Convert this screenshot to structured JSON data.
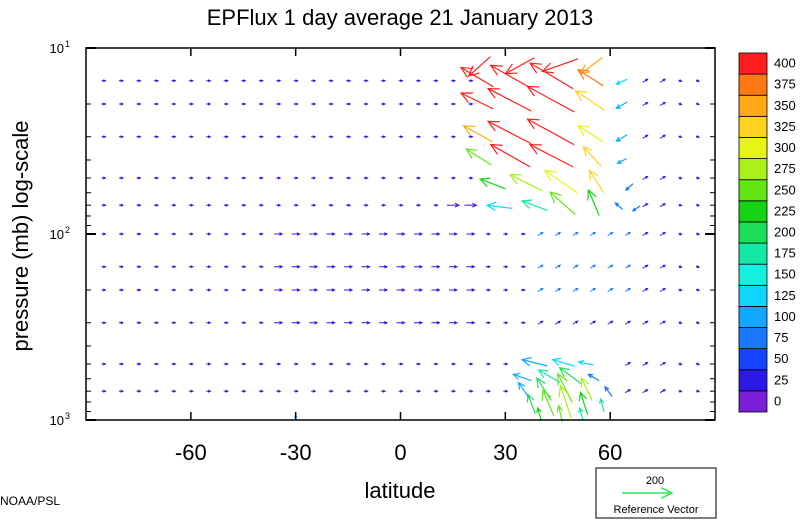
{
  "chart_data": {
    "type": "vector-field",
    "title": "EPFlux  1 day average  21 January   2013",
    "xlabel": "latitude",
    "ylabel": "pressure (mb)  log-scale",
    "xlim": [
      -90,
      90
    ],
    "ylim": [
      1000,
      10
    ],
    "yscale": "log",
    "x_ticks": [
      -60,
      -30,
      0,
      30,
      60
    ],
    "x_tick_labels": [
      "-60",
      "-30",
      "0",
      "30",
      "60"
    ],
    "y_ticks": [
      {
        "value": 10,
        "base": "10",
        "exp": "1"
      },
      {
        "value": 100,
        "base": "10",
        "exp": "2"
      },
      {
        "value": 1000,
        "base": "10",
        "exp": "3"
      }
    ],
    "colorbar": {
      "levels": [
        0,
        25,
        50,
        75,
        100,
        125,
        150,
        175,
        200,
        225,
        250,
        275,
        300,
        325,
        350,
        375,
        400
      ],
      "labels": [
        "0",
        "25",
        "50",
        "75",
        "100",
        "125",
        "150",
        "175",
        "200",
        "225",
        "250",
        "275",
        "300",
        "325",
        "350",
        "375",
        "400"
      ],
      "colors": [
        "#7a1fd6",
        "#2c19e6",
        "#1644ff",
        "#1a78ff",
        "#11a9ff",
        "#0fd6ff",
        "#14f0e0",
        "#14e8a6",
        "#1ce05a",
        "#14d414",
        "#64e614",
        "#aaf014",
        "#e6f514",
        "#ffd21e",
        "#ffaa14",
        "#ff7814",
        "#ff1e1e"
      ]
    },
    "reference_vector": {
      "value": "200",
      "label": "Reference Vector",
      "color": "#2ee65a"
    },
    "field": {
      "lat_columns": [
        -85,
        -80,
        -75,
        -70,
        -65,
        -60,
        -55,
        -50,
        -45,
        -40,
        -35,
        -30,
        -25,
        -20,
        -15,
        -10,
        -5,
        0,
        5,
        10,
        15,
        20,
        25,
        30,
        35,
        40,
        45,
        50,
        55,
        60,
        65,
        70,
        75,
        80,
        85
      ],
      "pressure_levels": [
        700,
        500,
        300,
        200,
        150,
        100,
        70,
        50,
        30,
        20,
        15
      ]
    },
    "vectors": [
      {
        "lat": 24,
        "p": 12,
        "u": 12,
        "v": -12,
        "c": "#ff1e1e"
      },
      {
        "lat": 36,
        "p": 12,
        "u": 16,
        "v": -10,
        "c": "#ff1e1e"
      },
      {
        "lat": 48,
        "p": 12,
        "u": 20,
        "v": -8,
        "c": "#ff1e1e"
      },
      {
        "lat": 56,
        "p": 12,
        "u": 12,
        "v": -10,
        "c": "#ffaa14"
      },
      {
        "lat": 24,
        "p": 15,
        "u": 18,
        "v": 12,
        "c": "#ff1e1e"
      },
      {
        "lat": 34,
        "p": 15,
        "u": 22,
        "v": 14,
        "c": "#ff1e1e"
      },
      {
        "lat": 46,
        "p": 15,
        "u": 24,
        "v": 16,
        "c": "#ff1e1e"
      },
      {
        "lat": 56,
        "p": 15,
        "u": 14,
        "v": 10,
        "c": "#ff7814"
      },
      {
        "lat": 64,
        "p": 15,
        "u": 6,
        "v": -3,
        "c": "#0fd6ff"
      },
      {
        "lat": 24,
        "p": 20,
        "u": 18,
        "v": 10,
        "c": "#ff1e1e"
      },
      {
        "lat": 34,
        "p": 20,
        "u": 24,
        "v": 14,
        "c": "#ff1e1e"
      },
      {
        "lat": 46,
        "p": 20,
        "u": 26,
        "v": 16,
        "c": "#ff1e1e"
      },
      {
        "lat": 56,
        "p": 20,
        "u": 16,
        "v": 12,
        "c": "#ffd21e"
      },
      {
        "lat": 64,
        "p": 20,
        "u": 6,
        "v": -4,
        "c": "#11a9ff"
      },
      {
        "lat": 24,
        "p": 30,
        "u": 16,
        "v": 10,
        "c": "#ffaa14"
      },
      {
        "lat": 34,
        "p": 30,
        "u": 24,
        "v": 14,
        "c": "#ff1e1e"
      },
      {
        "lat": 46,
        "p": 30,
        "u": 26,
        "v": 16,
        "c": "#ff1e1e"
      },
      {
        "lat": 56,
        "p": 30,
        "u": 14,
        "v": 10,
        "c": "#e6f514"
      },
      {
        "lat": 64,
        "p": 30,
        "u": 6,
        "v": -4,
        "c": "#11a9ff"
      },
      {
        "lat": 24,
        "p": 40,
        "u": 14,
        "v": 10,
        "c": "#64e614"
      },
      {
        "lat": 34,
        "p": 40,
        "u": 22,
        "v": 14,
        "c": "#ff1e1e"
      },
      {
        "lat": 46,
        "p": 40,
        "u": 24,
        "v": 14,
        "c": "#ff1e1e"
      },
      {
        "lat": 56,
        "p": 40,
        "u": 10,
        "v": 12,
        "c": "#ffd21e"
      },
      {
        "lat": 64,
        "p": 40,
        "u": 5,
        "v": -3,
        "c": "#11a9ff"
      },
      {
        "lat": 28,
        "p": 55,
        "u": 14,
        "v": 6,
        "c": "#14d414"
      },
      {
        "lat": 38,
        "p": 55,
        "u": 18,
        "v": 10,
        "c": "#aaf014"
      },
      {
        "lat": 48,
        "p": 55,
        "u": 18,
        "v": 14,
        "c": "#e6f514"
      },
      {
        "lat": 57,
        "p": 55,
        "u": 8,
        "v": 14,
        "c": "#ffd21e"
      },
      {
        "lat": 66,
        "p": 55,
        "u": 4,
        "v": -4,
        "c": "#1a78ff"
      },
      {
        "lat": 30,
        "p": 72,
        "u": 14,
        "v": 2,
        "c": "#0fd6ff"
      },
      {
        "lat": 40,
        "p": 72,
        "u": 14,
        "v": 6,
        "c": "#14e8a6"
      },
      {
        "lat": 48,
        "p": 72,
        "u": 14,
        "v": 14,
        "c": "#64e614"
      },
      {
        "lat": 56,
        "p": 72,
        "u": 6,
        "v": 16,
        "c": "#14d414"
      },
      {
        "lat": 63,
        "p": 72,
        "u": 4,
        "v": 4,
        "c": "#1a78ff"
      },
      {
        "lat": 68,
        "p": 72,
        "u": 4,
        "v": -3,
        "c": "#1a78ff"
      },
      {
        "lat": 40,
        "p": 500,
        "u": 14,
        "v": 4,
        "c": "#11a9ff"
      },
      {
        "lat": 48,
        "p": 500,
        "u": 12,
        "v": 4,
        "c": "#0fd6ff"
      },
      {
        "lat": 54,
        "p": 500,
        "u": 8,
        "v": 2,
        "c": "#0fd6ff"
      },
      {
        "lat": 36,
        "p": 600,
        "u": 10,
        "v": 4,
        "c": "#11a9ff"
      },
      {
        "lat": 44,
        "p": 600,
        "u": 12,
        "v": 8,
        "c": "#14e8a6"
      },
      {
        "lat": 50,
        "p": 600,
        "u": 12,
        "v": 10,
        "c": "#1ce05a"
      },
      {
        "lat": 56,
        "p": 600,
        "u": 6,
        "v": 4,
        "c": "#1a78ff"
      },
      {
        "lat": 36,
        "p": 720,
        "u": 6,
        "v": 10,
        "c": "#11a9ff"
      },
      {
        "lat": 42,
        "p": 720,
        "u": 8,
        "v": 14,
        "c": "#1ce05a"
      },
      {
        "lat": 48,
        "p": 720,
        "u": 8,
        "v": 18,
        "c": "#64e614"
      },
      {
        "lat": 54,
        "p": 720,
        "u": 6,
        "v": 14,
        "c": "#aaf014"
      },
      {
        "lat": 60,
        "p": 720,
        "u": 4,
        "v": 6,
        "c": "#1a78ff"
      },
      {
        "lat": 38,
        "p": 860,
        "u": 4,
        "v": 12,
        "c": "#1ce05a"
      },
      {
        "lat": 43,
        "p": 860,
        "u": 6,
        "v": 16,
        "c": "#64e614"
      },
      {
        "lat": 48,
        "p": 860,
        "u": 6,
        "v": 20,
        "c": "#aaf014"
      },
      {
        "lat": 53,
        "p": 860,
        "u": 4,
        "v": 14,
        "c": "#14d414"
      },
      {
        "lat": 58,
        "p": 860,
        "u": 2,
        "v": 8,
        "c": "#14e8a6"
      },
      {
        "lat": 40,
        "p": 960,
        "u": 2,
        "v": 8,
        "c": "#14d414"
      },
      {
        "lat": 46,
        "p": 960,
        "u": 2,
        "v": 10,
        "c": "#64e614"
      },
      {
        "lat": 52,
        "p": 960,
        "u": 2,
        "v": 8,
        "c": "#14e8a6"
      },
      {
        "lat": -30,
        "p": 980,
        "u": 0,
        "v": 3,
        "c": "#11a9ff"
      }
    ]
  },
  "credit": "NOAA/PSL"
}
